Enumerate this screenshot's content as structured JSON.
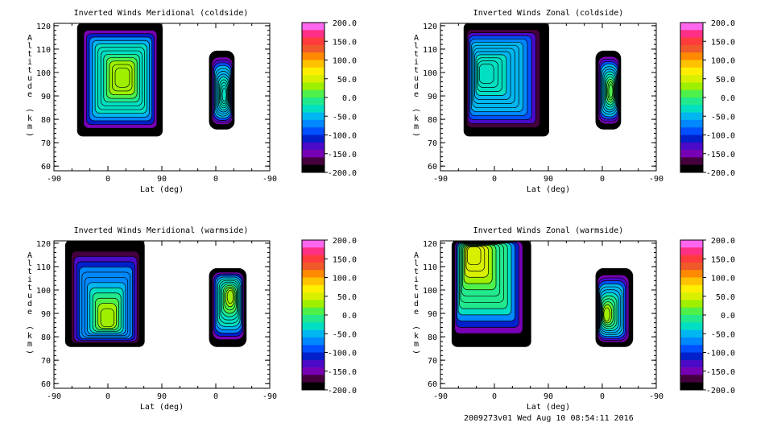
{
  "colorbar": {
    "levels": [
      "200.0",
      "150.0",
      "100.0",
      "50.0",
      "0.0",
      "-50.0",
      "-100.0",
      "-150.0",
      "-200.0"
    ],
    "colors": [
      "#ff66ee",
      "#ff2f86",
      "#ff3b3b",
      "#f05a2a",
      "#ff8a00",
      "#ffc200",
      "#ffee00",
      "#d8f000",
      "#9ef000",
      "#4ef04a",
      "#22e88e",
      "#00dfc2",
      "#00b6f0",
      "#0088ff",
      "#0050ff",
      "#0020cc",
      "#4a0ac8",
      "#7800b4",
      "#44003c",
      "#000000"
    ]
  },
  "chart_data": [
    {
      "type": "heatmap",
      "title": "Inverted Winds Meridional (coldside)",
      "xlabel": "Lat (deg)",
      "ylabel": "Altitude (km)",
      "xticks": [
        "-90",
        "0",
        "90",
        "0",
        "-90"
      ],
      "yticks": [
        "60",
        "70",
        "80",
        "90",
        "100",
        "110",
        "120"
      ],
      "ylim": [
        58,
        121
      ],
      "zlim": [
        -200,
        200
      ],
      "regions": [
        {
          "side": "ascending",
          "lat_range": [
            -50,
            90
          ],
          "alt_range": [
            73,
            121
          ],
          "z_interior": -40,
          "z_peak": 40,
          "peak_lat": 25,
          "peak_alt": 98
        },
        {
          "side": "descending",
          "lat_range": [
            -30,
            10
          ],
          "alt_range": [
            76,
            109
          ],
          "z_interior": -50,
          "z_peak": -20,
          "peak_lat": -15,
          "peak_alt": 90
        }
      ]
    },
    {
      "type": "heatmap",
      "title": "Inverted Winds Zonal (coldside)",
      "xlabel": "Lat (deg)",
      "ylabel": "Altitude (km)",
      "xticks": [
        "-90",
        "0",
        "90",
        "0",
        "-90"
      ],
      "yticks": [
        "60",
        "70",
        "80",
        "90",
        "100",
        "110",
        "120"
      ],
      "ylim": [
        58,
        121
      ],
      "zlim": [
        -200,
        200
      ],
      "regions": [
        {
          "side": "ascending",
          "lat_range": [
            -50,
            90
          ],
          "alt_range": [
            73,
            121
          ],
          "z_interior": -60,
          "z_peak": -20,
          "peak_lat": -20,
          "peak_alt": 100
        },
        {
          "side": "descending",
          "lat_range": [
            -30,
            10
          ],
          "alt_range": [
            76,
            109
          ],
          "z_interior": -50,
          "z_peak": 15,
          "peak_lat": -15,
          "peak_alt": 92
        }
      ]
    },
    {
      "type": "heatmap",
      "title": "Inverted Winds Meridional (warmside)",
      "xlabel": "Lat (deg)",
      "ylabel": "Altitude (km)",
      "xticks": [
        "-90",
        "0",
        "90",
        "0",
        "-90"
      ],
      "yticks": [
        "60",
        "70",
        "80",
        "90",
        "100",
        "110",
        "120"
      ],
      "ylim": [
        58,
        121
      ],
      "zlim": [
        -200,
        200
      ],
      "regions": [
        {
          "side": "ascending",
          "lat_range": [
            -70,
            60
          ],
          "alt_range": [
            76,
            121
          ],
          "z_interior": -70,
          "z_peak": 30,
          "peak_lat": 0,
          "peak_alt": 86
        },
        {
          "side": "descending",
          "lat_range": [
            -50,
            10
          ],
          "alt_range": [
            76,
            109
          ],
          "z_interior": -40,
          "z_peak": 30,
          "peak_lat": -25,
          "peak_alt": 98
        }
      ]
    },
    {
      "type": "heatmap",
      "title": "Inverted Winds Zonal (warmside)",
      "xlabel": "Lat (deg)",
      "ylabel": "Altitude (km)",
      "xticks": [
        "-90",
        "0",
        "90",
        "0",
        "-90"
      ],
      "yticks": [
        "60",
        "70",
        "80",
        "90",
        "100",
        "110",
        "120"
      ],
      "ylim": [
        58,
        121
      ],
      "zlim": [
        -200,
        200
      ],
      "regions": [
        {
          "side": "ascending",
          "lat_range": [
            -70,
            60
          ],
          "alt_range": [
            76,
            121
          ],
          "z_interior": -20,
          "z_peak": 60,
          "peak_lat": -40,
          "peak_alt": 118
        },
        {
          "side": "descending",
          "lat_range": [
            -50,
            10
          ],
          "alt_range": [
            76,
            109
          ],
          "z_interior": -50,
          "z_peak": 30,
          "peak_lat": -5,
          "peak_alt": 89
        }
      ]
    }
  ],
  "footer": "2009273v01 Wed Aug 10 08:54:11 2016"
}
